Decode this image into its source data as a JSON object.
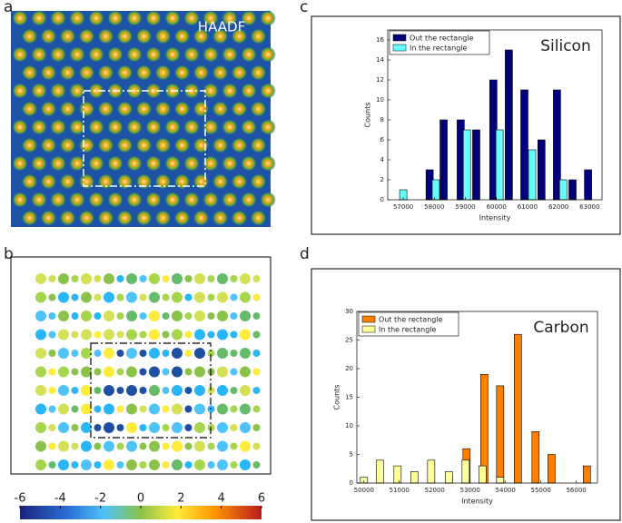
{
  "panel_labels": [
    "a",
    "b",
    "c",
    "d"
  ],
  "image_label": "HAADF",
  "colorbar": {
    "ticks": [
      -6,
      -4,
      -2,
      0,
      2,
      4,
      6
    ]
  },
  "chart_data": [
    {
      "type": "bar",
      "title": "Silicon",
      "xlabel": "Intensity",
      "ylabel": "Counts",
      "xlim": [
        56500,
        63400
      ],
      "xticks": [
        57000,
        58000,
        59000,
        60000,
        61000,
        62000,
        63000
      ],
      "ylim": [
        0,
        17
      ],
      "yticks": [
        0,
        2,
        4,
        6,
        8,
        10,
        12,
        14,
        16
      ],
      "legend": "upper left",
      "series": [
        {
          "name": "Out the rectangle",
          "color": "#00007a",
          "x": [
            57850,
            58300,
            58850,
            59350,
            59900,
            60400,
            60900,
            61450,
            61950,
            62450,
            62950
          ],
          "values": [
            3,
            8,
            8,
            7,
            12,
            15,
            11,
            6,
            11,
            2,
            3
          ]
        },
        {
          "name": "In the rectangle",
          "color": "#66ffff",
          "x": [
            57000,
            58050,
            59050,
            60100,
            61150,
            62150
          ],
          "values": [
            1,
            2,
            7,
            7,
            5,
            2
          ]
        }
      ]
    },
    {
      "type": "bar",
      "title": "Carbon",
      "xlabel": "Intensity",
      "ylabel": "Counts",
      "xlim": [
        49800,
        56600
      ],
      "xticks": [
        50000,
        51000,
        52000,
        53000,
        54000,
        55000,
        56000
      ],
      "ylim": [
        0,
        30
      ],
      "yticks": [
        0,
        5,
        10,
        15,
        20,
        25,
        30
      ],
      "legend": "upper left",
      "series": [
        {
          "name": "Out the rectangle",
          "color": "#ff7f00",
          "x": [
            52400,
            52900,
            53400,
            53850,
            54350,
            54850,
            55300,
            56300
          ],
          "values": [
            1,
            6,
            19,
            17,
            26,
            9,
            5,
            3
          ]
        },
        {
          "name": "In the rectangle",
          "color": "#ffff99",
          "x": [
            50000,
            50450,
            50950,
            51425,
            51900,
            52400,
            52875,
            53350,
            53850
          ],
          "values": [
            1,
            4,
            3,
            2,
            4,
            2,
            4,
            3,
            1
          ]
        }
      ]
    }
  ]
}
